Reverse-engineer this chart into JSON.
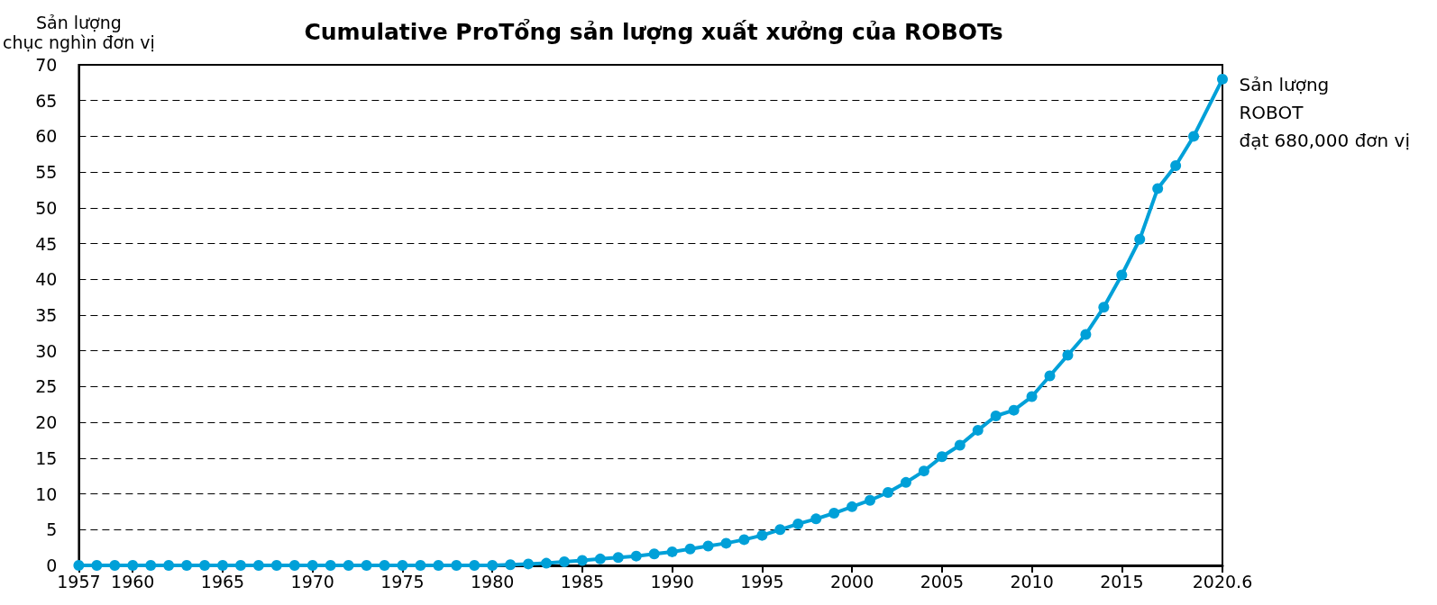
{
  "chart_data": {
    "type": "line",
    "title": "Cumulative ProTổng sản lượng xuất xưởng của ROBOTs",
    "ylabel": "Sản lượng\nchục nghìn đơn vị",
    "annotations": [
      "Sản lượng\nROBOT\nđạt 680,000 đơn vị"
    ],
    "x": [
      1957,
      1958,
      1959,
      1960,
      1961,
      1962,
      1963,
      1964,
      1965,
      1966,
      1967,
      1968,
      1969,
      1970,
      1971,
      1972,
      1973,
      1974,
      1975,
      1976,
      1977,
      1978,
      1979,
      1980,
      1981,
      1982,
      1983,
      1984,
      1985,
      1986,
      1987,
      1988,
      1989,
      1990,
      1991,
      1992,
      1993,
      1994,
      1995,
      1996,
      1997,
      1998,
      1999,
      2000,
      2001,
      2002,
      2003,
      2004,
      2005,
      2006,
      2007,
      2008,
      2009,
      2010,
      2011,
      2012,
      2013,
      2014,
      2015,
      2016,
      2017,
      2018,
      2019,
      2020.6
    ],
    "series": [
      {
        "color": "#00a0d8",
        "values": [
          0,
          0,
          0,
          0,
          0,
          0,
          0,
          0,
          0,
          0,
          0,
          0,
          0,
          0,
          0,
          0,
          0,
          0,
          0,
          0,
          0,
          0,
          0,
          0,
          0.1,
          0.2,
          0.3,
          0.5,
          0.7,
          0.9,
          1.1,
          1.3,
          1.6,
          1.9,
          2.3,
          2.7,
          3.1,
          3.6,
          4.2,
          5.0,
          5.8,
          6.5,
          7.3,
          8.2,
          9.1,
          10.2,
          11.6,
          13.2,
          15.2,
          16.8,
          18.9,
          20.9,
          21.7,
          23.6,
          26.5,
          29.4,
          32.3,
          36.1,
          40.6,
          45.6,
          52.7,
          55.9,
          60.0,
          68.0
        ]
      }
    ],
    "xlim": [
      1957,
      2020.6
    ],
    "xticks": [
      1957,
      1960,
      1965,
      1970,
      1975,
      1980,
      1985,
      1990,
      1995,
      2000,
      2005,
      2010,
      2015,
      2020.6
    ],
    "ylim": [
      0,
      70
    ],
    "yticks": [
      0,
      5,
      10,
      15,
      20,
      25,
      30,
      35,
      40,
      45,
      50,
      55,
      60,
      65,
      70
    ],
    "grid": "y",
    "marker": "circle",
    "line_style": "solid"
  }
}
